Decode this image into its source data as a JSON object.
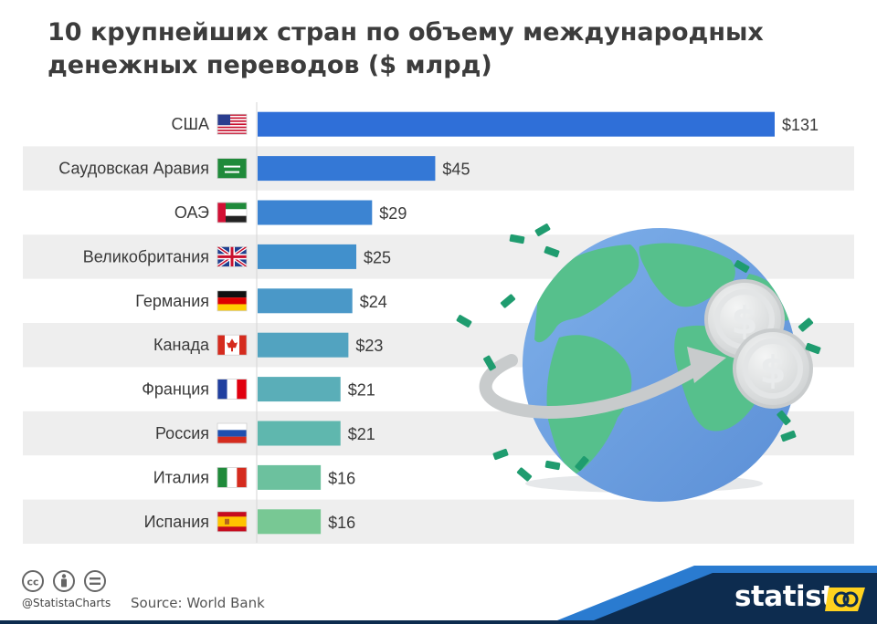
{
  "title_lines": [
    "10 крупнейших стран по объему международных",
    "денежных переводов ($ млрд)"
  ],
  "chart_data": {
    "type": "bar",
    "orientation": "horizontal",
    "title": "10 крупнейших стран по объему международных денежных переводов ($ млрд)",
    "categories": [
      "США",
      "Саудовская Аравия",
      "ОАЭ",
      "Великобритания",
      "Германия",
      "Канада",
      "Франция",
      "Россия",
      "Италия",
      "Испания"
    ],
    "values": [
      131,
      45,
      29,
      25,
      24,
      23,
      21,
      21,
      16,
      16
    ],
    "value_labels": [
      "$131",
      "$45",
      "$29",
      "$25",
      "$24",
      "$23",
      "$21",
      "$21",
      "$16",
      "$16"
    ],
    "flags": [
      "flag-usa-icon",
      "flag-saudi-arabia-icon",
      "flag-uae-icon",
      "flag-uk-icon",
      "flag-germany-icon",
      "flag-canada-icon",
      "flag-france-icon",
      "flag-russia-icon",
      "flag-italy-icon",
      "flag-spain-icon"
    ],
    "bar_colors": [
      "#2f6fd8",
      "#3478d6",
      "#3c84d2",
      "#4190cc",
      "#4a98c8",
      "#52a3c0",
      "#5aaeb8",
      "#5fb7ae",
      "#6cc19e",
      "#78c894"
    ],
    "stripe_color": "#eeeeee",
    "xlim": [
      0,
      131
    ],
    "grid": false,
    "legend": "none"
  },
  "footer": {
    "source": "Source: World Bank",
    "handle": "@StatistaCharts",
    "brand": "statista",
    "license_icons": [
      "cc-icon",
      "attribution-icon",
      "no-derivatives-icon"
    ]
  },
  "illustration": {
    "icons": [
      "globe-icon",
      "dollar-coin-icon",
      "dollar-coin-icon",
      "transfer-arrow-icon",
      "banknote-icon"
    ],
    "colors": {
      "ocean": "#6fa3e0",
      "land": "#56c08c",
      "coin": "#d9dbdc",
      "banknote": "#1f9c6f",
      "arrow": "#c8cbcc"
    }
  },
  "colors": {
    "footer_bar": "#0d2c4f",
    "footer_accent": "#2a7bd0",
    "logo_yellow": "#ffd21f"
  }
}
